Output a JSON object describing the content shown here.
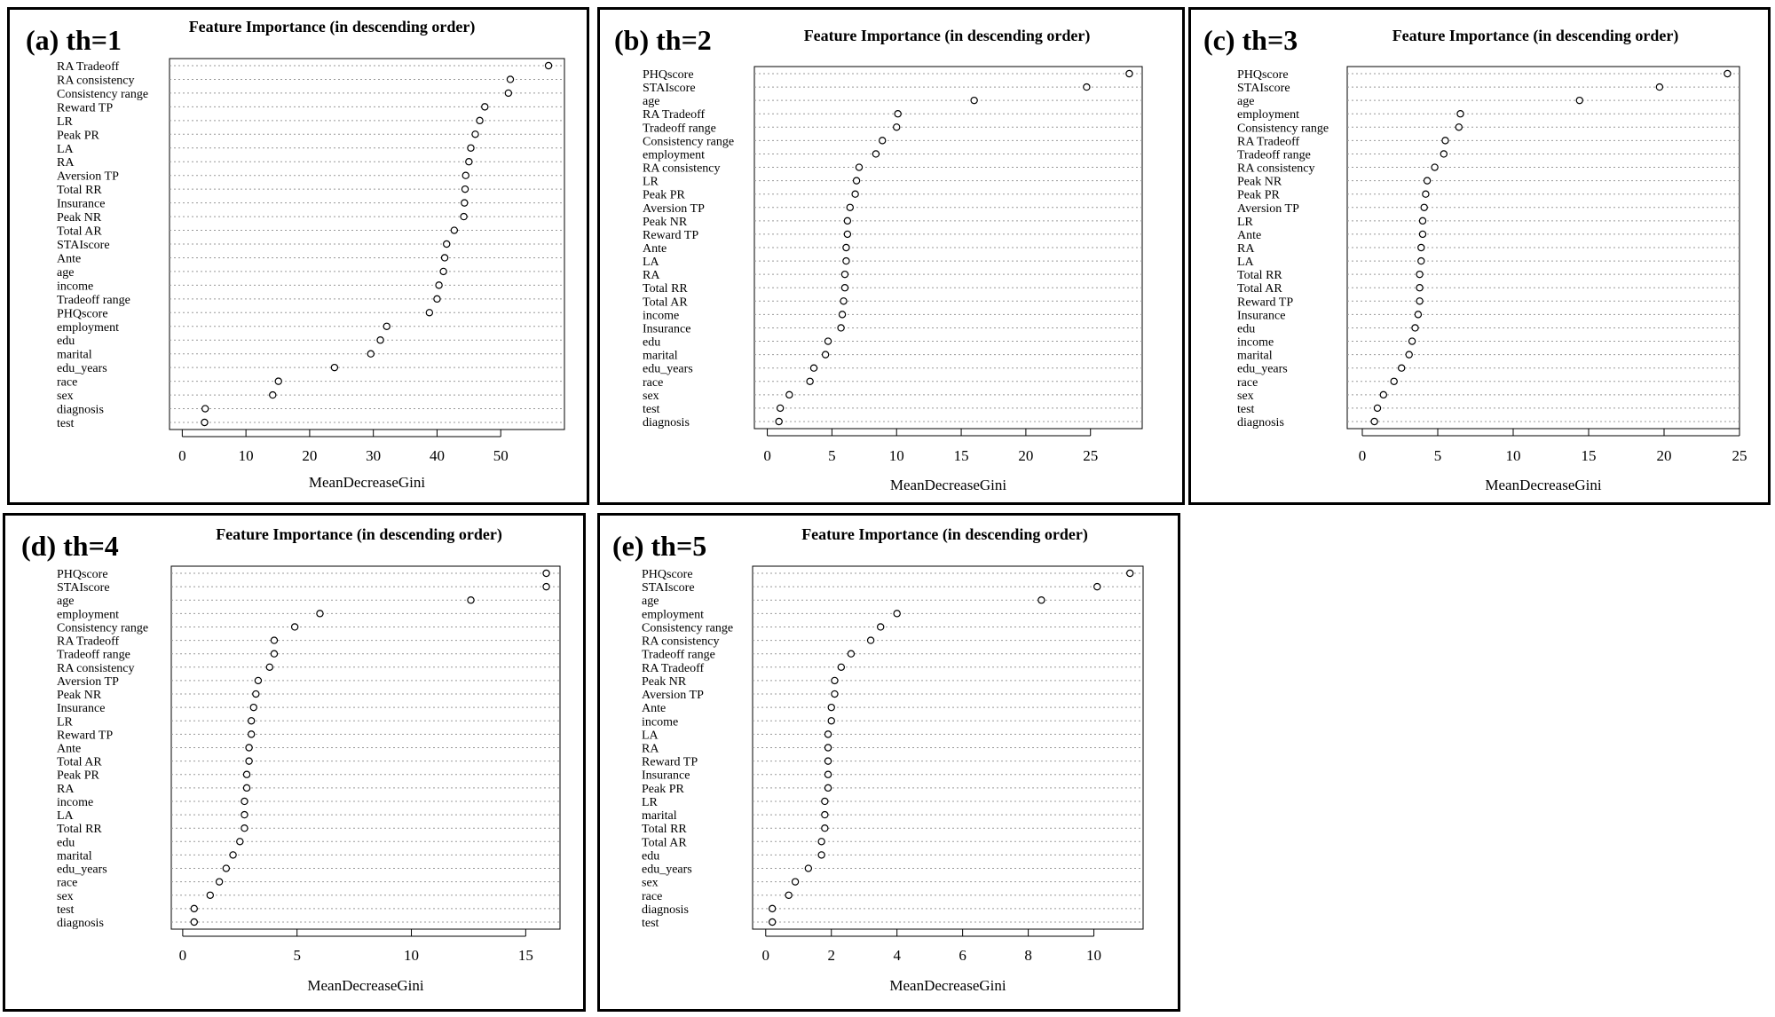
{
  "chart_data": [
    {
      "type": "scatter",
      "panel_label": "(a) th=1",
      "title": "Feature Importance (in descending order)",
      "xlabel": "MeanDecreaseGini",
      "ylabel": "",
      "xlim": [
        -2,
        60
      ],
      "xticks": [
        0,
        10,
        20,
        30,
        40,
        50
      ],
      "grid": true,
      "categories": [
        "RA Tradeoff",
        "RA consistency",
        "Consistency range",
        "Reward TP",
        "LR",
        "Peak PR",
        "LA",
        "RA",
        "Aversion TP",
        "Total RR",
        "Insurance",
        "Peak NR",
        "Total AR",
        "STAIscore",
        "Ante",
        "age",
        "income",
        "Tradeoff range",
        "PHQscore",
        "employment",
        "edu",
        "marital",
        "edu_years",
        "race",
        "sex",
        "diagnosis",
        "test"
      ],
      "values": [
        57.5,
        51.5,
        51.2,
        47.5,
        46.7,
        46.0,
        45.3,
        45.0,
        44.5,
        44.4,
        44.3,
        44.2,
        42.7,
        41.5,
        41.2,
        41.0,
        40.3,
        40.0,
        38.8,
        32.1,
        31.1,
        29.6,
        23.9,
        15.1,
        14.2,
        3.6,
        3.5
      ]
    },
    {
      "type": "scatter",
      "panel_label": "(b) th=2",
      "title": "Feature Importance (in descending order)",
      "xlabel": "MeanDecreaseGini",
      "ylabel": "",
      "xlim": [
        -1,
        29
      ],
      "xticks": [
        0,
        5,
        10,
        15,
        20,
        25
      ],
      "grid": true,
      "categories": [
        "PHQscore",
        "STAIscore",
        "age",
        "RA Tradeoff",
        "Tradeoff range",
        "Consistency range",
        "employment",
        "RA consistency",
        "LR",
        "Peak PR",
        "Aversion TP",
        "Peak NR",
        "Reward TP",
        "Ante",
        "LA",
        "RA",
        "Total RR",
        "Total AR",
        "income",
        "Insurance",
        "edu",
        "marital",
        "edu_years",
        "race",
        "sex",
        "test",
        "diagnosis"
      ],
      "values": [
        28.0,
        24.7,
        16.0,
        10.1,
        10.0,
        8.9,
        8.4,
        7.1,
        6.9,
        6.8,
        6.4,
        6.2,
        6.2,
        6.1,
        6.1,
        6.0,
        6.0,
        5.9,
        5.8,
        5.7,
        4.7,
        4.5,
        3.6,
        3.3,
        1.7,
        1.0,
        0.9
      ]
    },
    {
      "type": "scatter",
      "panel_label": "(c) th=3",
      "title": "Feature Importance (in descending order)",
      "xlabel": "MeanDecreaseGini",
      "ylabel": "",
      "xlim": [
        -1,
        25
      ],
      "xticks": [
        0,
        5,
        10,
        15,
        20,
        25
      ],
      "grid": true,
      "categories": [
        "PHQscore",
        "STAIscore",
        "age",
        "employment",
        "Consistency range",
        "RA Tradeoff",
        "Tradeoff range",
        "RA consistency",
        "Peak NR",
        "Peak PR",
        "Aversion TP",
        "LR",
        "Ante",
        "RA",
        "LA",
        "Total RR",
        "Total AR",
        "Reward TP",
        "Insurance",
        "edu",
        "income",
        "marital",
        "edu_years",
        "race",
        "sex",
        "test",
        "diagnosis"
      ],
      "values": [
        24.2,
        19.7,
        14.4,
        6.5,
        6.4,
        5.5,
        5.4,
        4.8,
        4.3,
        4.2,
        4.1,
        4.0,
        4.0,
        3.9,
        3.9,
        3.8,
        3.8,
        3.8,
        3.7,
        3.5,
        3.3,
        3.1,
        2.6,
        2.1,
        1.4,
        1.0,
        0.8
      ]
    },
    {
      "type": "scatter",
      "panel_label": "(d) th=4",
      "title": "Feature Importance (in descending order)",
      "xlabel": "MeanDecreaseGini",
      "ylabel": "",
      "xlim": [
        -0.5,
        16.5
      ],
      "xticks": [
        0,
        5,
        10,
        15
      ],
      "grid": true,
      "categories": [
        "PHQscore",
        "STAIscore",
        "age",
        "employment",
        "Consistency range",
        "RA Tradeoff",
        "Tradeoff range",
        "RA consistency",
        "Aversion TP",
        "Peak NR",
        "Insurance",
        "LR",
        "Reward TP",
        "Ante",
        "Total AR",
        "Peak PR",
        "RA",
        "income",
        "LA",
        "Total RR",
        "edu",
        "marital",
        "edu_years",
        "race",
        "sex",
        "test",
        "diagnosis"
      ],
      "values": [
        15.9,
        15.9,
        12.6,
        6.0,
        4.9,
        4.0,
        4.0,
        3.8,
        3.3,
        3.2,
        3.1,
        3.0,
        3.0,
        2.9,
        2.9,
        2.8,
        2.8,
        2.7,
        2.7,
        2.7,
        2.5,
        2.2,
        1.9,
        1.6,
        1.2,
        0.5,
        0.5
      ]
    },
    {
      "type": "scatter",
      "panel_label": "(e) th=5",
      "title": "Feature Importance (in descending order)",
      "xlabel": "MeanDecreaseGini",
      "ylabel": "",
      "xlim": [
        -0.4,
        11.5
      ],
      "xticks": [
        0,
        2,
        4,
        6,
        8,
        10
      ],
      "grid": true,
      "categories": [
        "PHQscore",
        "STAIscore",
        "age",
        "employment",
        "Consistency range",
        "RA consistency",
        "Tradeoff range",
        "RA Tradeoff",
        "Peak NR",
        "Aversion TP",
        "Ante",
        "income",
        "LA",
        "RA",
        "Reward TP",
        "Insurance",
        "Peak PR",
        "LR",
        "marital",
        "Total RR",
        "Total AR",
        "edu",
        "edu_years",
        "sex",
        "race",
        "diagnosis",
        "test"
      ],
      "values": [
        11.1,
        10.1,
        8.4,
        4.0,
        3.5,
        3.2,
        2.6,
        2.3,
        2.1,
        2.1,
        2.0,
        2.0,
        1.9,
        1.9,
        1.9,
        1.9,
        1.9,
        1.8,
        1.8,
        1.8,
        1.7,
        1.7,
        1.3,
        0.9,
        0.7,
        0.2,
        0.2
      ]
    }
  ]
}
